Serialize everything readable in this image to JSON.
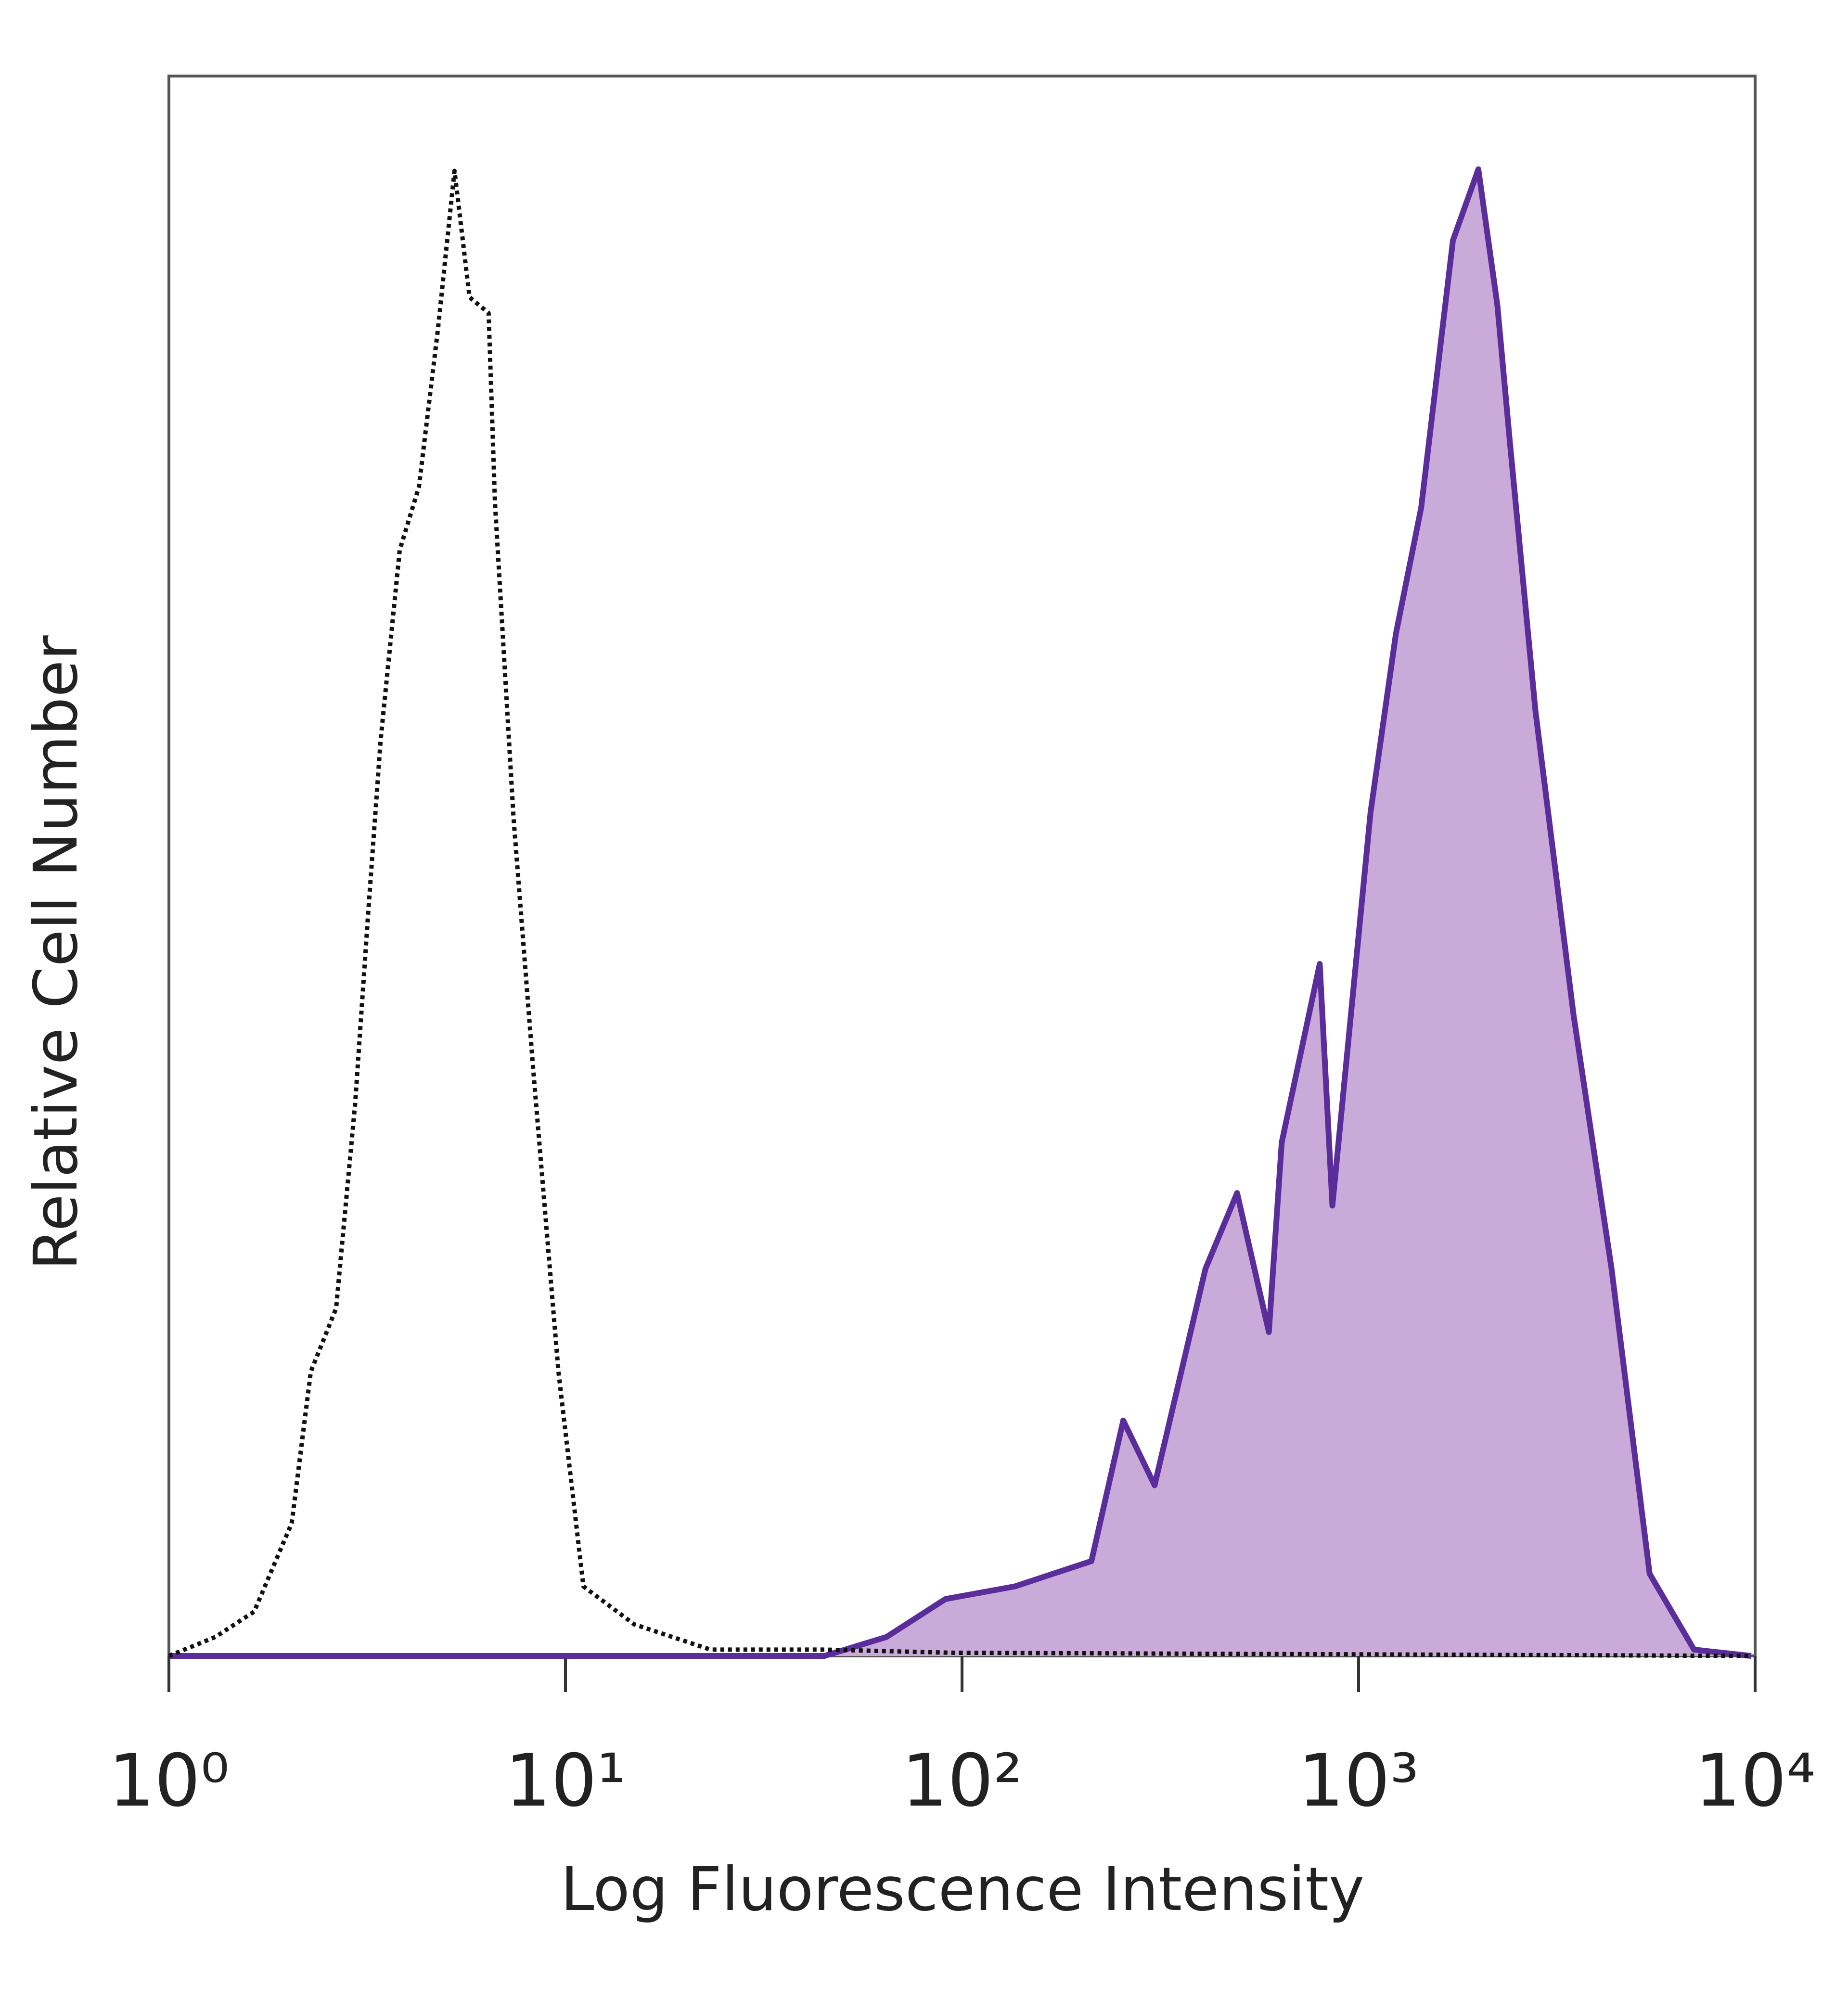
{
  "chart_data": {
    "type": "area",
    "x_label": "Log Fluorescence Intensity",
    "y_label": "Relative Cell Number",
    "xscale": "log",
    "xlim": [
      1,
      10000
    ],
    "xticks": [
      {
        "value": 1,
        "label": "10⁰"
      },
      {
        "value": 10,
        "label": "10¹"
      },
      {
        "value": 100,
        "label": "10²"
      },
      {
        "value": 1000,
        "label": "10³"
      },
      {
        "value": 10000,
        "label": "10⁴"
      }
    ],
    "ylim": [
      0,
      100
    ],
    "series": [
      {
        "color": "#111111",
        "style": "dotted",
        "filled": false,
        "x": [
          1,
          1.31,
          1.64,
          2.04,
          2.28,
          2.64,
          2.95,
          3.18,
          3.42,
          3.82,
          4.27,
          4.77,
          5.25,
          5.73,
          6.4,
          6.64,
          7.4,
          8.3,
          9.6,
          11.1,
          14.9,
          23.2,
          45.1,
          94.2,
          9800
        ],
        "values": [
          0,
          1.2,
          2.8,
          8.4,
          18,
          22,
          35,
          47,
          58,
          70,
          74,
          84,
          94,
          86,
          85,
          73,
          53,
          37,
          18,
          4.4,
          2,
          0.4,
          0.4,
          0.2,
          0
        ]
      },
      {
        "color": "#5b2d9a",
        "fill": "#c9aad8",
        "style": "solid",
        "filled": true,
        "x": [
          1,
          45,
          64.5,
          90.8,
          136,
          212,
          255,
          306,
          411,
          494,
          594,
          640,
          798,
          859,
          1072,
          1242,
          1439,
          1730,
          2005,
          2239,
          2410,
          2793,
          3483,
          4345,
          5420,
          7015,
          9772
        ],
        "values": [
          0,
          0,
          1.2,
          3.6,
          4.4,
          6,
          14.9,
          10.8,
          24.5,
          29.3,
          20.5,
          32.5,
          43.8,
          28.5,
          53.4,
          64.7,
          72.7,
          89.6,
          94.1,
          85.5,
          76.7,
          59.8,
          40.6,
          24.5,
          5.2,
          0.4,
          0
        ]
      }
    ]
  }
}
